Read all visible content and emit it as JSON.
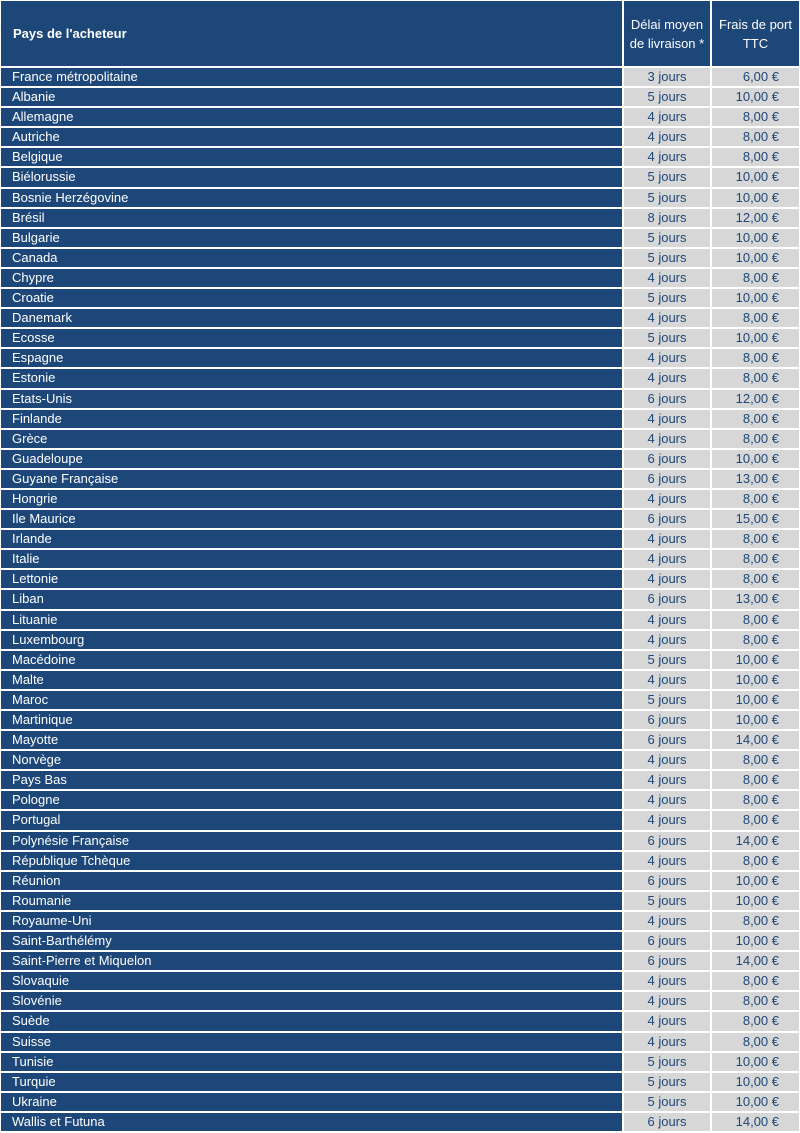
{
  "header": {
    "country": "Pays de l'acheteur",
    "delay_line1": "Délai moyen",
    "delay_line2": "de livraison *",
    "price_line1": "Frais de port",
    "price_line2": "TTC"
  },
  "rows": [
    {
      "country": "France métropolitaine",
      "delay": "3 jours",
      "price": "6,00 €"
    },
    {
      "country": "Albanie",
      "delay": "5 jours",
      "price": "10,00 €"
    },
    {
      "country": "Allemagne",
      "delay": "4 jours",
      "price": "8,00 €"
    },
    {
      "country": "Autriche",
      "delay": "4 jours",
      "price": "8,00 €"
    },
    {
      "country": "Belgique",
      "delay": "4 jours",
      "price": "8,00 €"
    },
    {
      "country": "Biélorussie",
      "delay": "5 jours",
      "price": "10,00 €"
    },
    {
      "country": "Bosnie Herzégovine",
      "delay": "5 jours",
      "price": "10,00 €"
    },
    {
      "country": "Brésil",
      "delay": "8 jours",
      "price": "12,00 €"
    },
    {
      "country": "Bulgarie",
      "delay": "5 jours",
      "price": "10,00 €"
    },
    {
      "country": "Canada",
      "delay": "5 jours",
      "price": "10,00 €"
    },
    {
      "country": "Chypre",
      "delay": "4 jours",
      "price": "8,00 €"
    },
    {
      "country": "Croatie",
      "delay": "5 jours",
      "price": "10,00 €"
    },
    {
      "country": "Danemark",
      "delay": "4 jours",
      "price": "8,00 €"
    },
    {
      "country": "Ecosse",
      "delay": "5 jours",
      "price": "10,00 €"
    },
    {
      "country": "Espagne",
      "delay": "4 jours",
      "price": "8,00 €"
    },
    {
      "country": "Estonie",
      "delay": "4 jours",
      "price": "8,00 €"
    },
    {
      "country": "Etats-Unis",
      "delay": "6 jours",
      "price": "12,00 €"
    },
    {
      "country": "Finlande",
      "delay": "4 jours",
      "price": "8,00 €"
    },
    {
      "country": "Grèce",
      "delay": "4 jours",
      "price": "8,00 €"
    },
    {
      "country": "Guadeloupe",
      "delay": "6 jours",
      "price": "10,00 €"
    },
    {
      "country": "Guyane Française",
      "delay": "6 jours",
      "price": "13,00 €"
    },
    {
      "country": "Hongrie",
      "delay": "4 jours",
      "price": "8,00 €"
    },
    {
      "country": "Ile Maurice",
      "delay": "6 jours",
      "price": "15,00 €"
    },
    {
      "country": "Irlande",
      "delay": "4 jours",
      "price": "8,00 €"
    },
    {
      "country": "Italie",
      "delay": "4 jours",
      "price": "8,00 €"
    },
    {
      "country": "Lettonie",
      "delay": "4 jours",
      "price": "8,00 €"
    },
    {
      "country": "Liban",
      "delay": "6 jours",
      "price": "13,00 €"
    },
    {
      "country": "Lituanie",
      "delay": "4 jours",
      "price": "8,00 €"
    },
    {
      "country": "Luxembourg",
      "delay": "4 jours",
      "price": "8,00 €"
    },
    {
      "country": "Macédoine",
      "delay": "5 jours",
      "price": "10,00 €"
    },
    {
      "country": "Malte",
      "delay": "4 jours",
      "price": "10,00 €"
    },
    {
      "country": "Maroc",
      "delay": "5 jours",
      "price": "10,00 €"
    },
    {
      "country": "Martinique",
      "delay": "6 jours",
      "price": "10,00 €"
    },
    {
      "country": "Mayotte",
      "delay": "6 jours",
      "price": "14,00 €"
    },
    {
      "country": "Norvège",
      "delay": "4 jours",
      "price": "8,00 €"
    },
    {
      "country": "Pays Bas",
      "delay": "4 jours",
      "price": "8,00 €"
    },
    {
      "country": "Pologne",
      "delay": "4 jours",
      "price": "8,00 €"
    },
    {
      "country": "Portugal",
      "delay": "4 jours",
      "price": "8,00 €"
    },
    {
      "country": "Polynésie Française",
      "delay": "6 jours",
      "price": "14,00 €"
    },
    {
      "country": "République Tchèque",
      "delay": "4 jours",
      "price": "8,00 €"
    },
    {
      "country": "Réunion",
      "delay": "6 jours",
      "price": "10,00 €"
    },
    {
      "country": "Roumanie",
      "delay": "5 jours",
      "price": "10,00 €"
    },
    {
      "country": "Royaume-Uni",
      "delay": "4 jours",
      "price": "8,00 €"
    },
    {
      "country": "Saint-Barthélémy",
      "delay": "6 jours",
      "price": "10,00 €"
    },
    {
      "country": "Saint-Pierre et Miquelon",
      "delay": "6 jours",
      "price": "14,00 €"
    },
    {
      "country": "Slovaquie",
      "delay": "4 jours",
      "price": "8,00 €"
    },
    {
      "country": "Slovénie",
      "delay": "4 jours",
      "price": "8,00 €"
    },
    {
      "country": "Suède",
      "delay": "4 jours",
      "price": "8,00 €"
    },
    {
      "country": "Suisse",
      "delay": "4 jours",
      "price": "8,00 €"
    },
    {
      "country": "Tunisie",
      "delay": "5 jours",
      "price": "10,00 €"
    },
    {
      "country": "Turquie",
      "delay": "5 jours",
      "price": "10,00 €"
    },
    {
      "country": "Ukraine",
      "delay": "5 jours",
      "price": "10,00 €"
    },
    {
      "country": "Wallis et Futuna",
      "delay": "6 jours",
      "price": "14,00 €"
    }
  ]
}
